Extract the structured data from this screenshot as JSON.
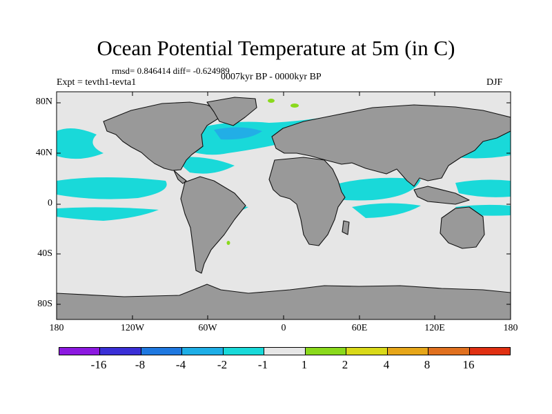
{
  "title": "Ocean Potential Temperature at 5m (in C)",
  "stats": "rmsd= 0.846414 diff= -0.624989",
  "experiment": "Expt = tevth1-tevta1",
  "period": "0007kyr BP - 0000kyr BP",
  "season": "DJF",
  "axes": {
    "y_ticks": [
      "80N",
      "40N",
      "0",
      "40S",
      "80S"
    ],
    "x_ticks": [
      "180",
      "120W",
      "60W",
      "0",
      "60E",
      "120E",
      "180"
    ]
  },
  "colors": {
    "land": "#999999",
    "neutral_ocean": "#e6e6e6",
    "cool": "#19d9d9",
    "mid_blue": "#22aee6",
    "warm_green": "#8ad91c"
  },
  "colorbar": {
    "colors": [
      "#8c19e0",
      "#3a2fd6",
      "#1f78e0",
      "#1eaee6",
      "#19d9d9",
      "#e6e6e6",
      "#8ad91c",
      "#d9d919",
      "#e6a619",
      "#e0701f",
      "#e03012"
    ],
    "labels": [
      "-16",
      "-8",
      "-4",
      "-2",
      "-1",
      "1",
      "2",
      "4",
      "8",
      "16"
    ]
  }
}
